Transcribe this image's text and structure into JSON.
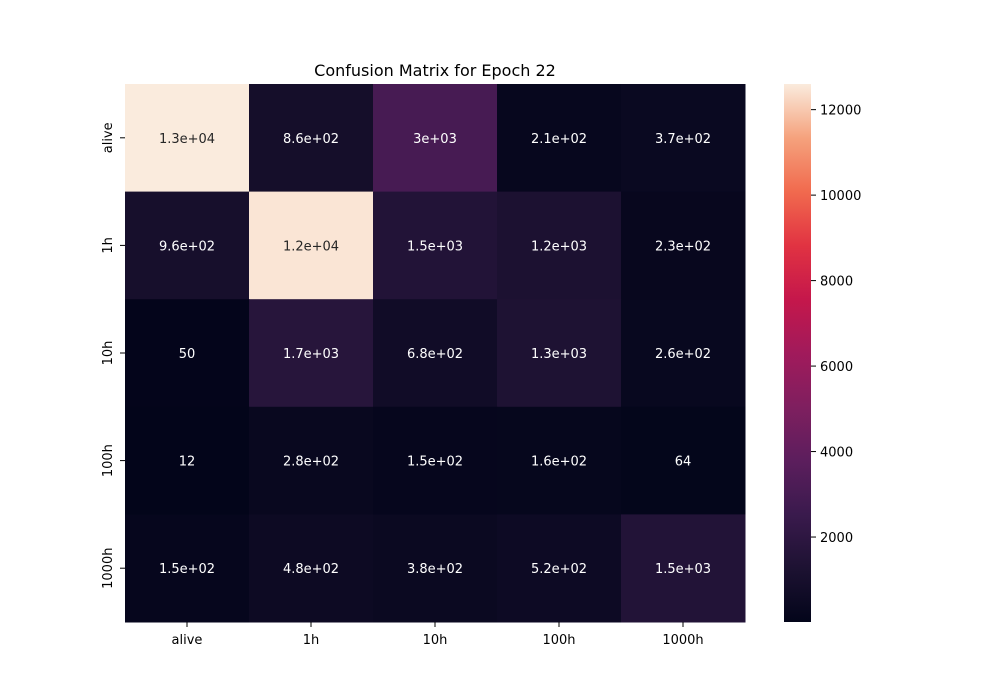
{
  "chart_data": {
    "type": "heatmap",
    "title": "Confusion Matrix for Epoch 22",
    "xlabel": "",
    "ylabel": "",
    "row_labels": [
      "alive",
      "1h",
      "10h",
      "100h",
      "1000h"
    ],
    "col_labels": [
      "alive",
      "1h",
      "10h",
      "100h",
      "1000h"
    ],
    "values": [
      [
        12600,
        860,
        3000,
        210,
        370
      ],
      [
        960,
        12500,
        1500,
        1200,
        230
      ],
      [
        50,
        1700,
        680,
        1300,
        260
      ],
      [
        12,
        280,
        150,
        160,
        64
      ],
      [
        150,
        480,
        380,
        520,
        1500
      ]
    ],
    "annotations": [
      [
        "1.3e+04",
        "8.6e+02",
        "3e+03",
        "2.1e+02",
        "3.7e+02"
      ],
      [
        "9.6e+02",
        "1.2e+04",
        "1.5e+03",
        "1.2e+03",
        "2.3e+02"
      ],
      [
        "50",
        "1.7e+03",
        "6.8e+02",
        "1.3e+03",
        "2.6e+02"
      ],
      [
        "12",
        "2.8e+02",
        "1.5e+02",
        "1.6e+02",
        "64"
      ],
      [
        "1.5e+02",
        "4.8e+02",
        "3.8e+02",
        "5.2e+02",
        "1.5e+03"
      ]
    ],
    "colorbar": {
      "colormap": "rocket",
      "vmin": 12,
      "vmax": 12600,
      "ticks": [
        2000,
        4000,
        6000,
        8000,
        10000,
        12000
      ],
      "tick_labels": [
        "2000",
        "4000",
        "6000",
        "8000",
        "10000",
        "12000"
      ]
    },
    "grid": false,
    "legend": "colorbar-right"
  }
}
